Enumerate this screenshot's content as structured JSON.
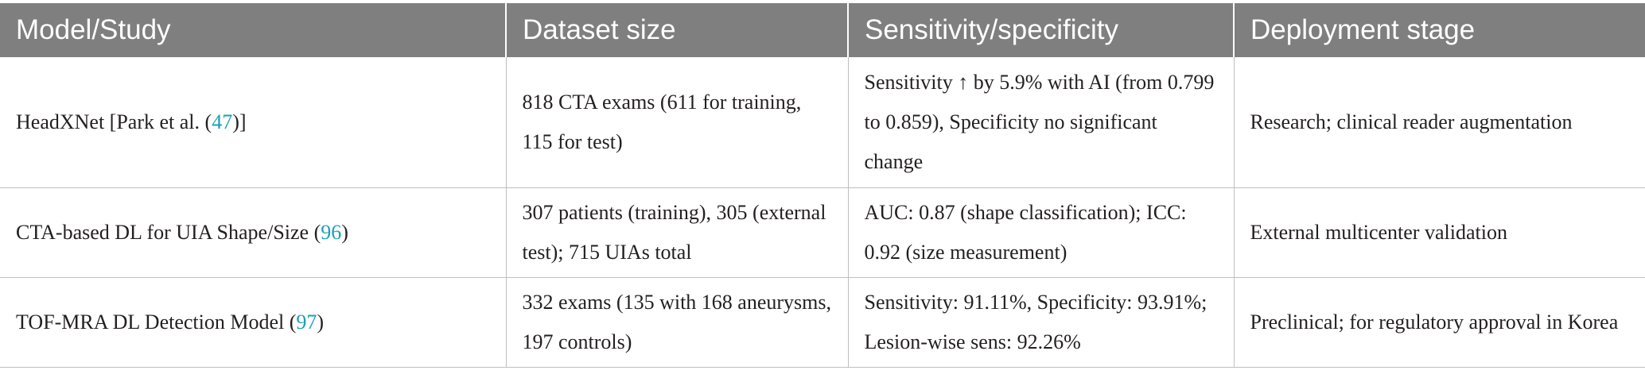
{
  "table": {
    "headers": [
      "Model/Study",
      "Dataset size",
      "Sensitivity/specificity",
      "Deployment stage"
    ],
    "rows": [
      {
        "model_prefix": "HeadXNet [Park et al. (",
        "model_ref": "47",
        "model_suffix": ")]",
        "dataset": "818 CTA exams (611 for training, 115 for test)",
        "sens_spec": "Sensitivity ↑ by 5.9% with AI (from 0.799 to 0.859), Specificity no significant change",
        "stage": "Research; clinical reader augmentation"
      },
      {
        "model_prefix": "CTA-based DL for UIA Shape/Size (",
        "model_ref": "96",
        "model_suffix": ")",
        "dataset": "307 patients (training), 305 (external test); 715 UIAs total",
        "sens_spec": "AUC: 0.87 (shape classification); ICC: 0.92 (size measurement)",
        "stage": "External multicenter validation"
      },
      {
        "model_prefix": "TOF-MRA DL Detection Model (",
        "model_ref": "97",
        "model_suffix": ")",
        "dataset": "332 exams (135 with 168 aneurysms, 197 controls)",
        "sens_spec": "Sensitivity: 91.11%, Specificity: 93.91%; Lesion-wise sens: 92.26%",
        "stage": "Preclinical; for regulatory approval in Korea"
      }
    ]
  },
  "colors": {
    "header_bg": "#7f7f7f",
    "header_text": "#ffffff",
    "link": "#1aa0b4",
    "grid": "#bfbfbf"
  }
}
